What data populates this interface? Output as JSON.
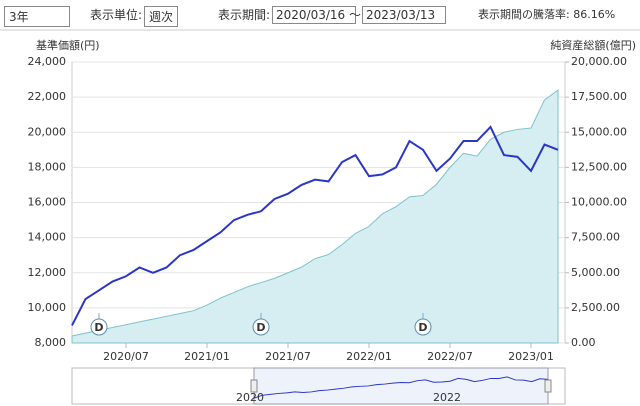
{
  "controls": {
    "period": "3年",
    "unit_label": "表示単位:",
    "unit": "週次",
    "range_label": "表示期間:",
    "start": "2020/03/16",
    "separator": "～",
    "end": "2023/03/13",
    "change_label": "表示期間の騰落率: 86.16%"
  },
  "chart_data": {
    "type": "line-area",
    "y_label": "基準価額(円)",
    "y2_label": "純資産総額(億円)",
    "x": [
      "2020/03",
      "2020/04",
      "2020/05",
      "2020/06",
      "2020/07",
      "2020/08",
      "2020/09",
      "2020/10",
      "2020/11",
      "2020/12",
      "2021/01",
      "2021/02",
      "2021/03",
      "2021/04",
      "2021/05",
      "2021/06",
      "2021/07",
      "2021/08",
      "2021/09",
      "2021/10",
      "2021/11",
      "2021/12",
      "2022/01",
      "2022/02",
      "2022/03",
      "2022/04",
      "2022/05",
      "2022/06",
      "2022/07",
      "2022/08",
      "2022/09",
      "2022/10",
      "2022/11",
      "2022/12",
      "2023/01",
      "2023/02",
      "2023/03"
    ],
    "xticks": [
      "2020/07",
      "2021/01",
      "2021/07",
      "2022/01",
      "2022/07",
      "2023/01"
    ],
    "series": [
      {
        "name": "基準価額",
        "color": "#2b36c6",
        "values": [
          9000,
          10500,
          11000,
          11500,
          11800,
          12300,
          12000,
          12300,
          13000,
          13300,
          13800,
          14300,
          15000,
          15300,
          15500,
          16200,
          16500,
          17000,
          17300,
          17200,
          18300,
          18700,
          17500,
          17600,
          18000,
          19500,
          19000,
          17800,
          18500,
          19500,
          19500,
          20300,
          18700,
          18600,
          17800,
          19300,
          19000
        ]
      },
      {
        "name": "純資産総額",
        "color": "#7cc3cc",
        "axis": "y2",
        "values": [
          500,
          700,
          900,
          1100,
          1300,
          1500,
          1700,
          1900,
          2100,
          2300,
          2700,
          3200,
          3600,
          4000,
          4300,
          4600,
          5000,
          5400,
          6000,
          6300,
          7000,
          7800,
          8300,
          9200,
          9700,
          10400,
          10500,
          11300,
          12500,
          13500,
          13300,
          14500,
          15000,
          15200,
          15300,
          17300,
          18000
        ]
      }
    ],
    "ylim": [
      8000,
      24000
    ],
    "yticks": [
      {
        "value": 8000,
        "label": "8,000"
      },
      {
        "value": 10000,
        "label": "10,000"
      },
      {
        "value": 12000,
        "label": "12,000"
      },
      {
        "value": 14000,
        "label": "14,000"
      },
      {
        "value": 16000,
        "label": "16,000"
      },
      {
        "value": 18000,
        "label": "18,000"
      },
      {
        "value": 20000,
        "label": "20,000"
      },
      {
        "value": 22000,
        "label": "22,000"
      },
      {
        "value": 24000,
        "label": "24,000"
      }
    ],
    "y2lim": [
      0,
      20000
    ],
    "y2ticks": [
      {
        "value": 0,
        "label": "0.00"
      },
      {
        "value": 2500,
        "label": "2,500.00"
      },
      {
        "value": 5000,
        "label": "5,000.00"
      },
      {
        "value": 7500,
        "label": "7,500.00"
      },
      {
        "value": 10000,
        "label": "10,000.00"
      },
      {
        "value": 12500,
        "label": "12,500.00"
      },
      {
        "value": 15000,
        "label": "15,000.00"
      },
      {
        "value": 17500,
        "label": "17,500.00"
      },
      {
        "value": 20000,
        "label": "20,000.00"
      }
    ],
    "grid": true,
    "dividend_markers": {
      "label": "D",
      "x": [
        "2020/05",
        "2021/05",
        "2022/05"
      ]
    },
    "navigator": {
      "labels": [
        "2020",
        "2022"
      ]
    }
  }
}
